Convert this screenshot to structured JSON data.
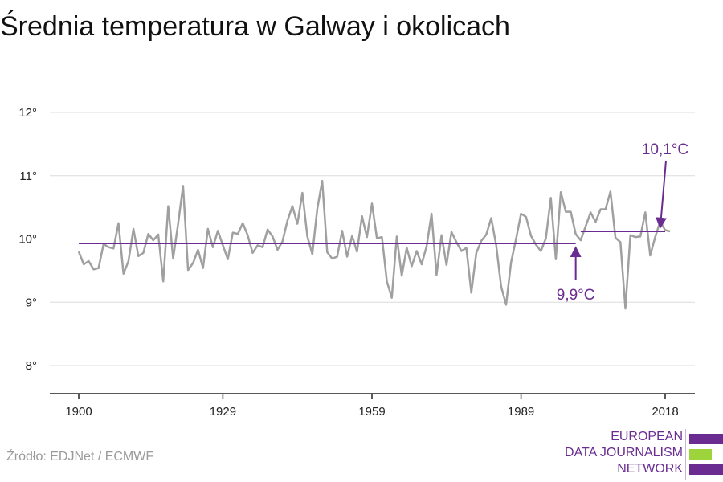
{
  "title": "Średnia temperatura w Galway i okolicach",
  "source": "Źródło: EDJNet / ECMWF",
  "logo": {
    "lines": [
      "EUROPEAN",
      "DATA JOURNALISM",
      "NETWORK"
    ]
  },
  "colors": {
    "series": "#a0a0a0",
    "mean": "#6a2c91",
    "grid": "#dcdcdc",
    "axis": "#222222",
    "logo_purple": "#6a2c91",
    "logo_green": "#9dd43b"
  },
  "chart_data": {
    "type": "line",
    "title": "Średnia temperatura w Galway i okolicach",
    "xlabel": "",
    "ylabel": "",
    "xlim": [
      1900,
      2018
    ],
    "ylim": [
      8,
      12
    ],
    "y_ticks": [
      {
        "value": 8,
        "label": "8°"
      },
      {
        "value": 9,
        "label": "9°"
      },
      {
        "value": 10,
        "label": "10°"
      },
      {
        "value": 11,
        "label": "11°"
      },
      {
        "value": 12,
        "label": "12°"
      }
    ],
    "x_ticks": [
      {
        "value": 1900,
        "label": "1900"
      },
      {
        "value": 1929,
        "label": "1929"
      },
      {
        "value": 1959,
        "label": "1959"
      },
      {
        "value": 1989,
        "label": "1989"
      },
      {
        "value": 2018,
        "label": "2018"
      }
    ],
    "grid": true,
    "series": [
      {
        "type": "line",
        "x": [
          1900,
          1901,
          1902,
          1903,
          1904,
          1905,
          1906,
          1907,
          1908,
          1909,
          1910,
          1911,
          1912,
          1913,
          1914,
          1915,
          1916,
          1917,
          1918,
          1919,
          1920,
          1921,
          1922,
          1923,
          1924,
          1925,
          1926,
          1927,
          1928,
          1929,
          1930,
          1931,
          1932,
          1933,
          1934,
          1935,
          1936,
          1937,
          1938,
          1939,
          1940,
          1941,
          1942,
          1943,
          1944,
          1945,
          1946,
          1947,
          1948,
          1949,
          1950,
          1951,
          1952,
          1953,
          1954,
          1955,
          1956,
          1957,
          1958,
          1959,
          1960,
          1961,
          1962,
          1963,
          1964,
          1965,
          1966,
          1967,
          1968,
          1969,
          1970,
          1971,
          1972,
          1973,
          1974,
          1975,
          1976,
          1977,
          1978,
          1979,
          1980,
          1981,
          1982,
          1983,
          1984,
          1985,
          1986,
          1987,
          1988,
          1989,
          1990,
          1991,
          1992,
          1993,
          1994,
          1995,
          1996,
          1997,
          1998,
          1999,
          2000,
          2001,
          2002,
          2003,
          2004,
          2005,
          2006,
          2007,
          2008,
          2009,
          2010,
          2011,
          2012,
          2013,
          2014,
          2015,
          2016,
          2017,
          2018,
          2019
        ],
        "values": [
          9.8,
          9.6,
          9.65,
          9.52,
          9.54,
          9.92,
          9.87,
          9.85,
          10.25,
          9.45,
          9.65,
          10.16,
          9.73,
          9.78,
          10.08,
          9.98,
          10.07,
          9.33,
          10.52,
          9.69,
          10.24,
          10.84,
          9.51,
          9.62,
          9.83,
          9.54,
          10.16,
          9.87,
          10.13,
          9.9,
          9.68,
          10.1,
          10.08,
          10.25,
          10.06,
          9.78,
          9.9,
          9.87,
          10.15,
          10.04,
          9.83,
          9.96,
          10.29,
          10.52,
          10.24,
          10.73,
          10.04,
          9.76,
          10.47,
          10.92,
          9.79,
          9.69,
          9.72,
          10.13,
          9.72,
          10.05,
          9.8,
          10.36,
          10.03,
          10.56,
          10.01,
          10.03,
          9.33,
          9.07,
          10.04,
          9.42,
          9.86,
          9.57,
          9.81,
          9.6,
          9.89,
          10.4,
          9.43,
          10.06,
          9.59,
          10.11,
          9.95,
          9.81,
          9.86,
          9.15,
          9.78,
          9.97,
          10.07,
          10.33,
          9.9,
          9.25,
          8.96,
          9.63,
          10.0,
          10.4,
          10.35,
          10.05,
          9.91,
          9.81,
          10.01,
          10.65,
          9.68,
          10.74,
          10.43,
          10.43,
          10.08,
          9.98,
          10.2,
          10.42,
          10.27,
          10.47,
          10.47,
          10.75,
          10.02,
          9.95,
          8.9,
          10.06,
          10.03,
          10.04,
          10.42,
          9.74,
          10.03,
          10.28,
          10.14,
          10.12
        ]
      },
      {
        "type": "hline",
        "x_start": 1900,
        "x_end": 2000,
        "value": 9.93,
        "label": "9,9°C"
      },
      {
        "type": "hline",
        "x_start": 2001,
        "x_end": 2018,
        "value": 10.12,
        "label": "10,1°C"
      }
    ],
    "annotations": [
      {
        "text": "9,9°C",
        "series": 1
      },
      {
        "text": "10,1°C",
        "series": 2
      }
    ]
  }
}
